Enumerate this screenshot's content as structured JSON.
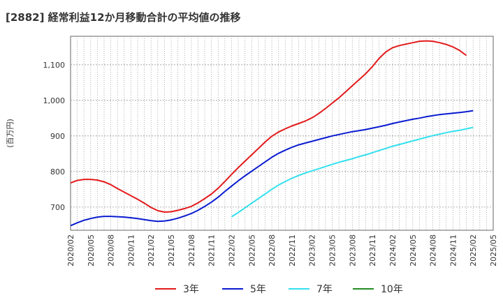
{
  "chart_data": {
    "type": "line",
    "title": "[2882]  経常利益12か月移動合計の平均値の推移",
    "ylabel": "(百万円)",
    "xlabel": "",
    "ylim": [
      635,
      1180
    ],
    "xlim": [
      "2020-02",
      "2025-05"
    ],
    "y_ticks": [
      700,
      800,
      900,
      1000,
      1100
    ],
    "y_tick_labels": [
      "700",
      "800",
      "900",
      "1,000",
      "1,100"
    ],
    "x_ticks": [
      "2020/02",
      "2020/05",
      "2020/08",
      "2020/11",
      "2021/02",
      "2021/05",
      "2021/08",
      "2021/11",
      "2022/02",
      "2022/05",
      "2022/08",
      "2022/11",
      "2023/02",
      "2023/05",
      "2023/08",
      "2023/11",
      "2024/02",
      "2024/05",
      "2024/08",
      "2024/11",
      "2025/02",
      "2025/05"
    ],
    "grid": true,
    "legend_position": "bottom",
    "series": [
      {
        "name": "3年",
        "color": "#e31a1c",
        "points": [
          [
            "2020-02",
            768
          ],
          [
            "2020-03",
            775
          ],
          [
            "2020-04",
            778
          ],
          [
            "2020-05",
            778
          ],
          [
            "2020-06",
            776
          ],
          [
            "2020-07",
            771
          ],
          [
            "2020-08",
            763
          ],
          [
            "2020-09",
            752
          ],
          [
            "2020-10",
            742
          ],
          [
            "2020-11",
            732
          ],
          [
            "2020-12",
            722
          ],
          [
            "2021-01",
            711
          ],
          [
            "2021-02",
            699
          ],
          [
            "2021-03",
            690
          ],
          [
            "2021-04",
            686
          ],
          [
            "2021-05",
            687
          ],
          [
            "2021-06",
            691
          ],
          [
            "2021-07",
            696
          ],
          [
            "2021-08",
            702
          ],
          [
            "2021-09",
            712
          ],
          [
            "2021-10",
            724
          ],
          [
            "2021-11",
            737
          ],
          [
            "2021-12",
            753
          ],
          [
            "2022-01",
            772
          ],
          [
            "2022-02",
            792
          ],
          [
            "2022-03",
            811
          ],
          [
            "2022-04",
            829
          ],
          [
            "2022-05",
            847
          ],
          [
            "2022-06",
            865
          ],
          [
            "2022-07",
            883
          ],
          [
            "2022-08",
            899
          ],
          [
            "2022-09",
            911
          ],
          [
            "2022-10",
            920
          ],
          [
            "2022-11",
            928
          ],
          [
            "2022-12",
            935
          ],
          [
            "2023-01",
            942
          ],
          [
            "2023-02",
            951
          ],
          [
            "2023-03",
            963
          ],
          [
            "2023-04",
            977
          ],
          [
            "2023-05",
            992
          ],
          [
            "2023-06",
            1007
          ],
          [
            "2023-07",
            1024
          ],
          [
            "2023-08",
            1041
          ],
          [
            "2023-09",
            1058
          ],
          [
            "2023-10",
            1075
          ],
          [
            "2023-11",
            1095
          ],
          [
            "2023-12",
            1118
          ],
          [
            "2024-01",
            1136
          ],
          [
            "2024-02",
            1148
          ],
          [
            "2024-03",
            1154
          ],
          [
            "2024-04",
            1158
          ],
          [
            "2024-05",
            1162
          ],
          [
            "2024-06",
            1166
          ],
          [
            "2024-07",
            1167
          ],
          [
            "2024-08",
            1166
          ],
          [
            "2024-09",
            1162
          ],
          [
            "2024-10",
            1157
          ],
          [
            "2024-11",
            1150
          ],
          [
            "2024-12",
            1140
          ],
          [
            "2025-01",
            1126
          ]
        ]
      },
      {
        "name": "5年",
        "color": "#0a1bd0",
        "points": [
          [
            "2020-02",
            648
          ],
          [
            "2020-03",
            656
          ],
          [
            "2020-04",
            663
          ],
          [
            "2020-05",
            668
          ],
          [
            "2020-06",
            672
          ],
          [
            "2020-07",
            674
          ],
          [
            "2020-08",
            674
          ],
          [
            "2020-09",
            673
          ],
          [
            "2020-10",
            672
          ],
          [
            "2020-11",
            670
          ],
          [
            "2020-12",
            668
          ],
          [
            "2021-01",
            665
          ],
          [
            "2021-02",
            662
          ],
          [
            "2021-03",
            660
          ],
          [
            "2021-04",
            661
          ],
          [
            "2021-05",
            664
          ],
          [
            "2021-06",
            669
          ],
          [
            "2021-07",
            675
          ],
          [
            "2021-08",
            682
          ],
          [
            "2021-09",
            691
          ],
          [
            "2021-10",
            702
          ],
          [
            "2021-11",
            714
          ],
          [
            "2021-12",
            728
          ],
          [
            "2022-01",
            744
          ],
          [
            "2022-02",
            759
          ],
          [
            "2022-03",
            774
          ],
          [
            "2022-04",
            788
          ],
          [
            "2022-05",
            801
          ],
          [
            "2022-06",
            814
          ],
          [
            "2022-07",
            827
          ],
          [
            "2022-08",
            840
          ],
          [
            "2022-09",
            851
          ],
          [
            "2022-10",
            860
          ],
          [
            "2022-11",
            868
          ],
          [
            "2022-12",
            875
          ],
          [
            "2023-01",
            880
          ],
          [
            "2023-02",
            885
          ],
          [
            "2023-03",
            890
          ],
          [
            "2023-04",
            895
          ],
          [
            "2023-05",
            900
          ],
          [
            "2023-06",
            904
          ],
          [
            "2023-07",
            908
          ],
          [
            "2023-08",
            912
          ],
          [
            "2023-09",
            915
          ],
          [
            "2023-10",
            918
          ],
          [
            "2023-11",
            922
          ],
          [
            "2023-12",
            926
          ],
          [
            "2024-01",
            930
          ],
          [
            "2024-02",
            935
          ],
          [
            "2024-03",
            939
          ],
          [
            "2024-04",
            943
          ],
          [
            "2024-05",
            947
          ],
          [
            "2024-06",
            950
          ],
          [
            "2024-07",
            954
          ],
          [
            "2024-08",
            957
          ],
          [
            "2024-09",
            960
          ],
          [
            "2024-10",
            962
          ],
          [
            "2024-11",
            964
          ],
          [
            "2024-12",
            966
          ],
          [
            "2025-01",
            968
          ],
          [
            "2025-02",
            971
          ]
        ]
      },
      {
        "name": "7年",
        "color": "#33e0ee",
        "points": [
          [
            "2022-02",
            673
          ],
          [
            "2022-03",
            685
          ],
          [
            "2022-04",
            698
          ],
          [
            "2022-05",
            711
          ],
          [
            "2022-06",
            724
          ],
          [
            "2022-07",
            737
          ],
          [
            "2022-08",
            750
          ],
          [
            "2022-09",
            762
          ],
          [
            "2022-10",
            772
          ],
          [
            "2022-11",
            781
          ],
          [
            "2022-12",
            789
          ],
          [
            "2023-01",
            796
          ],
          [
            "2023-02",
            802
          ],
          [
            "2023-03",
            808
          ],
          [
            "2023-04",
            814
          ],
          [
            "2023-05",
            820
          ],
          [
            "2023-06",
            826
          ],
          [
            "2023-07",
            831
          ],
          [
            "2023-08",
            836
          ],
          [
            "2023-09",
            842
          ],
          [
            "2023-10",
            847
          ],
          [
            "2023-11",
            853
          ],
          [
            "2023-12",
            859
          ],
          [
            "2024-01",
            865
          ],
          [
            "2024-02",
            871
          ],
          [
            "2024-03",
            876
          ],
          [
            "2024-04",
            881
          ],
          [
            "2024-05",
            886
          ],
          [
            "2024-06",
            891
          ],
          [
            "2024-07",
            896
          ],
          [
            "2024-08",
            901
          ],
          [
            "2024-09",
            905
          ],
          [
            "2024-10",
            909
          ],
          [
            "2024-11",
            913
          ],
          [
            "2024-12",
            916
          ],
          [
            "2025-01",
            920
          ],
          [
            "2025-02",
            924
          ]
        ]
      },
      {
        "name": "10年",
        "color": "#228b22",
        "points": []
      }
    ]
  }
}
